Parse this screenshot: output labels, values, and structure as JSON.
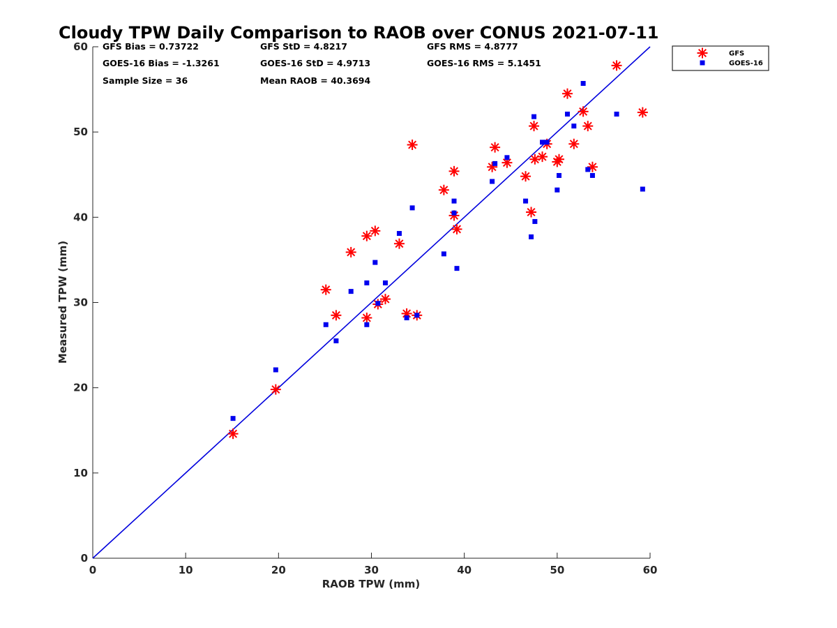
{
  "chart_data": {
    "type": "scatter",
    "title": "Cloudy TPW Daily Comparison to RAOB over CONUS 2021-07-11",
    "xlabel": "RAOB TPW (mm)",
    "ylabel": "Measured TPW (mm)",
    "xlim": [
      0,
      60
    ],
    "ylim": [
      0,
      60
    ],
    "xticks": [
      0,
      10,
      20,
      30,
      40,
      50,
      60
    ],
    "yticks": [
      0,
      10,
      20,
      30,
      40,
      50,
      60
    ],
    "grid": false,
    "legend_position": "outside-top-right",
    "reference_line": {
      "x": [
        0,
        60
      ],
      "y": [
        0,
        60
      ],
      "color": "#0000dd"
    },
    "stats": [
      [
        "GFS Bias = 0.73722",
        "GFS StD = 4.8217",
        "GFS RMS = 4.8777"
      ],
      [
        "GOES-16 Bias = -1.3261",
        "GOES-16 StD = 4.9713",
        "GOES-16 RMS = 5.1451"
      ],
      [
        "Sample Size = 36",
        "Mean RAOB = 40.3694",
        ""
      ]
    ],
    "series": [
      {
        "name": "GFS",
        "marker": "asterisk",
        "color": "#ff0000",
        "x": [
          15.1,
          19.7,
          25.1,
          26.2,
          27.8,
          29.5,
          29.5,
          30.4,
          30.7,
          31.5,
          33.0,
          33.8,
          34.4,
          34.9,
          37.8,
          38.9,
          38.9,
          39.2,
          43.0,
          43.3,
          44.6,
          46.6,
          47.2,
          47.5,
          47.6,
          48.4,
          48.9,
          50.0,
          50.2,
          51.1,
          51.8,
          52.8,
          53.3,
          53.8,
          56.4,
          59.2
        ],
        "y": [
          14.6,
          19.8,
          31.5,
          28.5,
          35.9,
          37.8,
          28.2,
          38.4,
          29.8,
          30.4,
          36.9,
          28.7,
          48.5,
          28.5,
          43.2,
          45.4,
          40.2,
          38.6,
          45.9,
          48.2,
          46.4,
          44.8,
          40.6,
          50.7,
          46.8,
          47.1,
          48.6,
          46.5,
          46.8,
          54.5,
          48.6,
          52.4,
          50.7,
          45.9,
          57.8,
          52.3
        ]
      },
      {
        "name": "GOES-16",
        "marker": "square",
        "color": "#0000ee",
        "x": [
          15.1,
          19.7,
          25.1,
          26.2,
          27.8,
          29.5,
          29.5,
          30.4,
          30.7,
          31.5,
          33.0,
          33.8,
          34.4,
          34.9,
          37.8,
          38.9,
          38.9,
          39.2,
          43.0,
          43.3,
          44.6,
          46.6,
          47.2,
          47.5,
          47.6,
          48.4,
          48.9,
          50.0,
          50.2,
          51.1,
          51.8,
          52.8,
          53.3,
          53.8,
          56.4,
          59.2
        ],
        "y": [
          16.4,
          22.1,
          27.4,
          25.5,
          31.3,
          32.3,
          27.4,
          34.7,
          29.9,
          32.3,
          38.1,
          28.2,
          41.1,
          28.5,
          35.7,
          41.9,
          40.5,
          34.0,
          44.2,
          46.3,
          47.0,
          41.9,
          37.7,
          51.8,
          39.5,
          48.8,
          48.8,
          43.2,
          44.9,
          52.1,
          50.7,
          55.7,
          45.6,
          44.9,
          52.1,
          43.3
        ]
      }
    ]
  }
}
